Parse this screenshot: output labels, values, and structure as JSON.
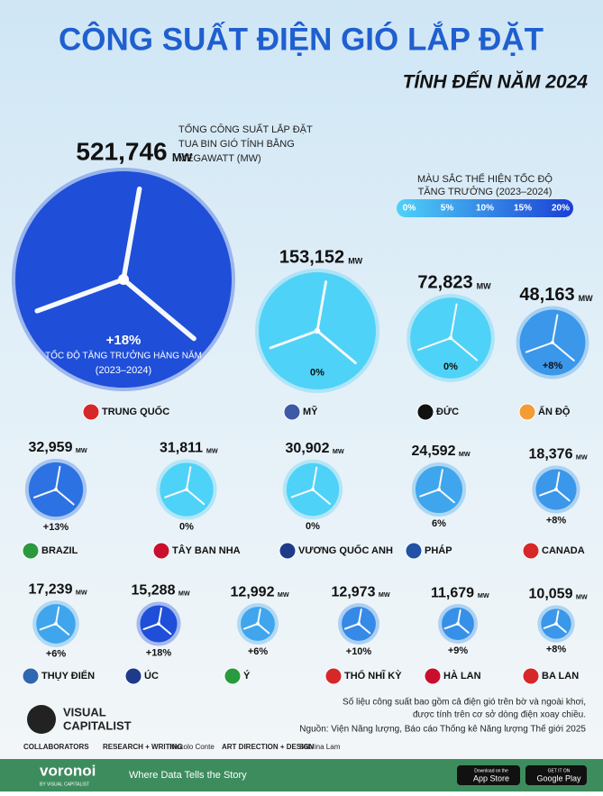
{
  "chart_data": {
    "type": "bubble",
    "title": "CÔNG SUẤT ĐIỆN GIÓ LẮP ĐẶT",
    "subtitle": "TÍNH ĐẾN NĂM 2024",
    "size_note": [
      "TỔNG CÔNG SUẤT LẮP ĐẶT",
      "TUA BIN GIÓ TÍNH BẰNG",
      "MEGAWATT (MW)"
    ],
    "growth_note": [
      "TỐC ĐỘ TĂNG TRƯỞNG HÀNG NĂM",
      "(2023–2024)"
    ],
    "unit": "MW",
    "legend": {
      "title": [
        "MÀU SẮC THỂ HIỆN TỐC ĐỘ",
        "TĂNG TRƯỞNG (2023–2024)"
      ],
      "ticks": [
        {
          "value": 0,
          "label": "0%"
        },
        {
          "value": 5,
          "label": "5%"
        },
        {
          "value": 10,
          "label": "10%"
        },
        {
          "value": 15,
          "label": "15%"
        },
        {
          "value": 20,
          "label": "20%"
        }
      ]
    },
    "categories": [
      "TRUNG QUỐC",
      "MỸ",
      "ĐỨC",
      "ẤN ĐỘ",
      "BRAZIL",
      "TÂY BAN NHA",
      "VƯƠNG QUỐC ANH",
      "PHÁP",
      "CANADA",
      "THỤY ĐIỂN",
      "ÚC",
      "Ý",
      "THỔ NHĨ KỲ",
      "HÀ LAN",
      "BA LAN"
    ],
    "values": [
      521746,
      153152,
      72823,
      48163,
      32959,
      31811,
      30902,
      24592,
      18376,
      17239,
      15288,
      12992,
      12973,
      11679,
      10059
    ],
    "value_labels": [
      "521,746",
      "153,152",
      "72,823",
      "48,163",
      "32,959",
      "31,811",
      "30,902",
      "24,592",
      "18,376",
      "17,239",
      "15,288",
      "12,992",
      "12,973",
      "11,679",
      "10,059"
    ],
    "growth": {
      "values": [
        18,
        0,
        0,
        8,
        13,
        0,
        0,
        6,
        8,
        6,
        18,
        6,
        10,
        9,
        8
      ],
      "labels": [
        "+18%",
        "0%",
        "0%",
        "+8%",
        "+13%",
        "0%",
        "0%",
        "6%",
        "+8%",
        "+6%",
        "+18%",
        "+6%",
        "+10%",
        "+9%",
        "+8%"
      ]
    }
  },
  "notes": [
    "Số liệu công suất bao gồm cả điện gió trên bờ và ngoài khơi,",
    "được tính trên cơ sở dòng điện xoay chiều.",
    "Nguồn: Viện Năng lượng, Báo cáo Thống kê Năng lượng Thế giới 2025"
  ],
  "brand": {
    "name": [
      "VISUAL",
      "CAPITALIST"
    ],
    "collaborators": "COLLABORATORS",
    "research": "RESEARCH + WRITING",
    "researcher": "Niccolo Conte",
    "art": "ART DIRECTION + DESIGN",
    "artist": "Sabrina Lam"
  },
  "footer": {
    "logo": "voronoi",
    "logo_sub": "BY VISUAL CAPITALIST",
    "tagline": "Where Data Tells the Story",
    "app_store": "App Store",
    "app_store_pre": "Download on the",
    "google_play": "Google Play",
    "google_play_pre": "GET IT ON"
  }
}
